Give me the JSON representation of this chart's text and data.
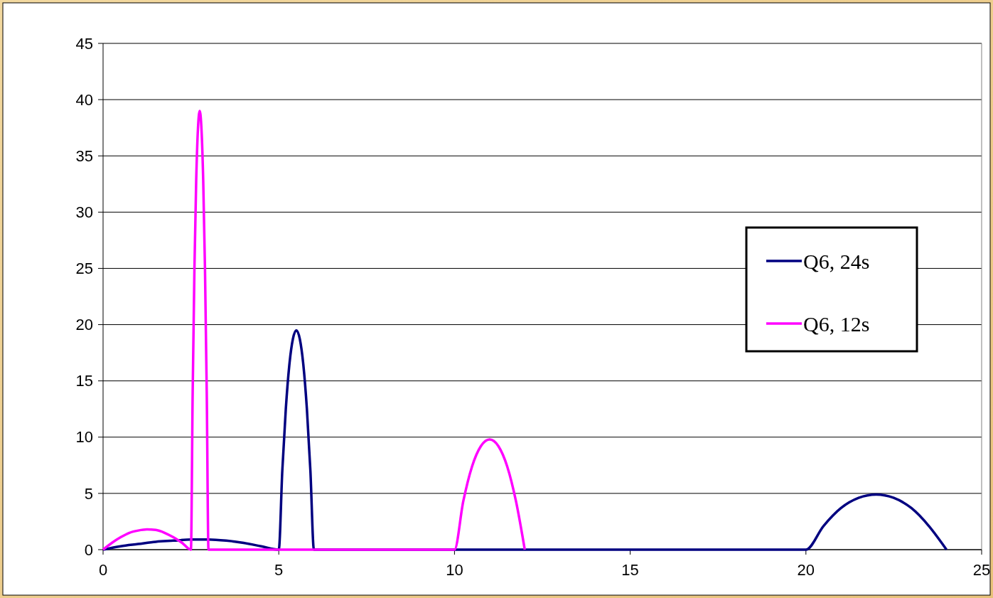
{
  "chart_data": {
    "type": "line",
    "xlim": [
      0,
      25
    ],
    "xticks": [
      0,
      5,
      10,
      15,
      20,
      25
    ],
    "ylim": [
      0,
      45
    ],
    "yticks": [
      0,
      5,
      10,
      15,
      20,
      25,
      30,
      35,
      40,
      45
    ],
    "grid": "y",
    "legend": "right",
    "line_style": "solid",
    "series": [
      {
        "name": "Q6, 24s",
        "color": "#000080",
        "x": [
          0,
          0.5,
          1,
          1.5,
          2,
          2.5,
          3,
          3.5,
          4,
          4.5,
          5,
          5.1,
          5.2,
          5.3,
          5.4,
          5.5,
          5.6,
          5.7,
          5.8,
          5.9,
          6,
          10,
          20,
          20.5,
          21,
          21.5,
          22,
          22.5,
          23,
          23.5,
          24
        ],
        "values": [
          0,
          0.3,
          0.5,
          0.7,
          0.8,
          0.9,
          0.9,
          0.8,
          0.6,
          0.3,
          0,
          7,
          12.5,
          16.4,
          18.7,
          19.5,
          18.7,
          16.4,
          12.5,
          7,
          0,
          0,
          0,
          2.1,
          3.7,
          4.6,
          4.9,
          4.6,
          3.7,
          2.1,
          0
        ]
      },
      {
        "name": "Q6, 12s",
        "color": "#ff00ff",
        "x": [
          0,
          0.25,
          0.5,
          0.75,
          1,
          1.25,
          1.5,
          1.75,
          2,
          2.25,
          2.5,
          2.55,
          2.6,
          2.65,
          2.7,
          2.75,
          2.8,
          2.85,
          2.9,
          2.95,
          3,
          10,
          10.25,
          10.5,
          10.75,
          11,
          11.25,
          11.5,
          11.75,
          12
        ],
        "values": [
          0,
          0.6,
          1.1,
          1.5,
          1.7,
          1.8,
          1.75,
          1.5,
          1.1,
          0.6,
          0,
          14,
          25,
          32.8,
          37.4,
          39,
          37.4,
          32.8,
          25,
          14,
          0,
          0,
          4.3,
          7.4,
          9.2,
          9.8,
          9.2,
          7.4,
          4.3,
          0
        ]
      }
    ]
  }
}
